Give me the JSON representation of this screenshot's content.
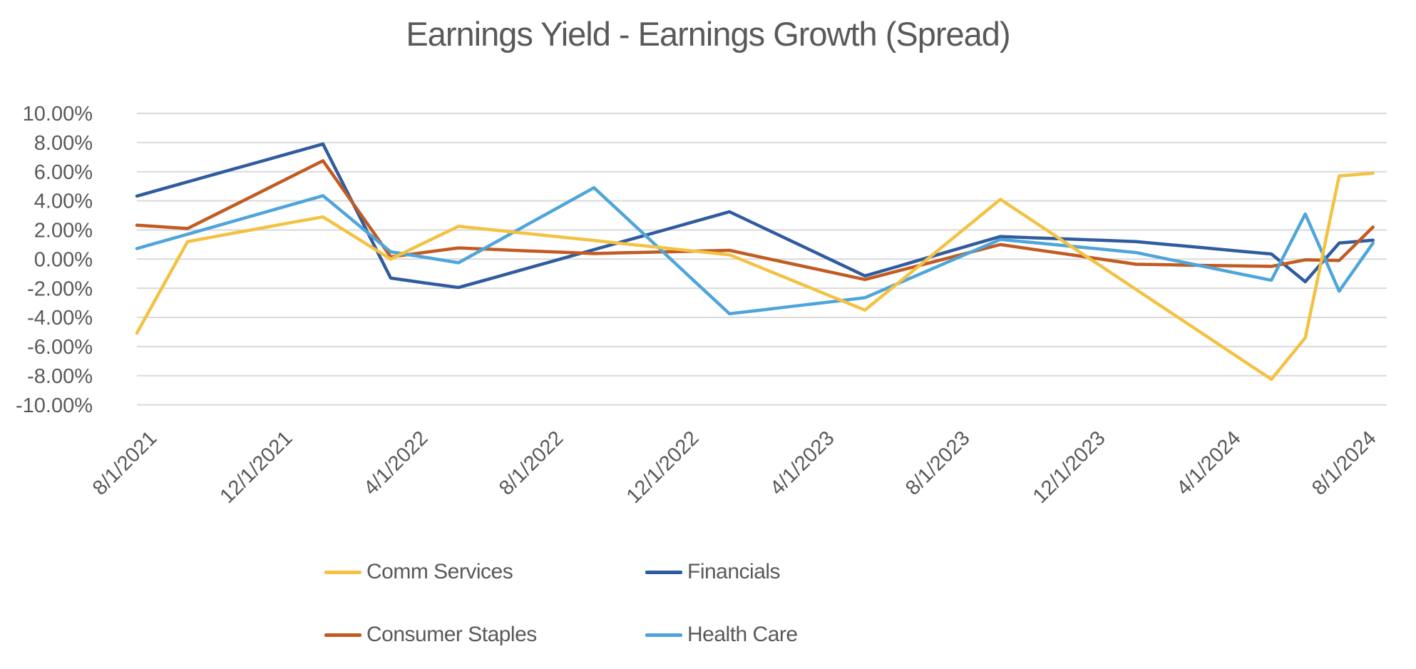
{
  "chart_data": {
    "type": "line",
    "title": "Earnings Yield - Earnings Growth (Spread)",
    "ylabel": "",
    "xlabel": "",
    "ylim": [
      -10,
      10
    ],
    "y_tick_values": [
      10,
      8,
      6,
      4,
      2,
      0,
      -2,
      -4,
      -6,
      -8,
      -10
    ],
    "y_tick_labels": [
      "10.00%",
      "8.00%",
      "6.00%",
      "4.00%",
      "2.00%",
      "0.00%",
      "-2.00%",
      "-4.00%",
      "-6.00%",
      "-8.00%",
      "-10.00%"
    ],
    "x_tick_labels": [
      "8/1/2021",
      "12/1/2021",
      "4/1/2022",
      "8/1/2022",
      "12/1/2022",
      "4/1/2023",
      "8/1/2023",
      "12/1/2023",
      "4/1/2024",
      "8/1/2024"
    ],
    "x_tick_every_n_points": 4,
    "categories": [
      "8/1/2021",
      "9/1/2021",
      "10/1/2021",
      "11/1/2021",
      "12/1/2021",
      "1/1/2022",
      "2/1/2022",
      "3/1/2022",
      "4/1/2022",
      "5/1/2022",
      "6/1/2022",
      "7/1/2022",
      "8/1/2022",
      "9/1/2022",
      "10/1/2022",
      "11/1/2022",
      "12/1/2022",
      "1/1/2023",
      "2/1/2023",
      "3/1/2023",
      "4/1/2023",
      "5/1/2023",
      "6/1/2023",
      "7/1/2023",
      "8/1/2023",
      "9/1/2023",
      "10/1/2023",
      "11/1/2023",
      "12/1/2023",
      "1/1/2024",
      "2/1/2024",
      "3/1/2024",
      "4/1/2024",
      "5/1/2024",
      "6/1/2024",
      "7/1/2024",
      "8/1/2024"
    ],
    "series": [
      {
        "name": "Comm Services",
        "color": "#F3C243",
        "values": [
          -3.0,
          1.2,
          1.63,
          2.05,
          2.48,
          2.9,
          1.45,
          0.0,
          1.13,
          2.25,
          2.01,
          1.76,
          1.52,
          1.28,
          1.03,
          0.79,
          0.54,
          0.3,
          -0.65,
          -1.6,
          -2.55,
          -3.5,
          -1.6,
          0.3,
          2.2,
          4.1,
          2.56,
          1.01,
          -0.53,
          -2.08,
          -3.62,
          -5.16,
          -6.71,
          -8.25,
          -5.4,
          5.7,
          5.9
        ]
      },
      {
        "name": "Financials",
        "color": "#2F5C9F",
        "values": [
          4.65,
          5.3,
          5.95,
          6.6,
          7.25,
          7.9,
          3.3,
          -1.3,
          -1.63,
          -1.95,
          -1.3,
          -0.65,
          0.0,
          0.65,
          1.3,
          1.95,
          2.6,
          3.25,
          2.15,
          1.05,
          -0.05,
          -1.15,
          -0.48,
          0.2,
          0.88,
          1.55,
          1.46,
          1.38,
          1.29,
          1.2,
          0.99,
          0.78,
          0.56,
          0.35,
          -1.55,
          1.1,
          1.3
        ]
      },
      {
        "name": "Consumer Staples",
        "color": "#C15B22",
        "values": [
          2.25,
          2.1,
          3.26,
          4.42,
          5.59,
          6.75,
          3.45,
          0.15,
          0.46,
          0.77,
          0.67,
          0.57,
          0.48,
          0.38,
          0.44,
          0.49,
          0.55,
          0.6,
          0.1,
          -0.4,
          -0.9,
          -1.4,
          -0.8,
          -0.2,
          0.4,
          1.0,
          0.66,
          0.33,
          -0.01,
          -0.35,
          -0.39,
          -0.43,
          -0.46,
          -0.5,
          -0.05,
          -0.1,
          2.2
        ]
      },
      {
        "name": "Health Care",
        "color": "#4FA5D9",
        "values": [
          1.05,
          1.71,
          2.37,
          3.03,
          3.69,
          4.35,
          2.43,
          0.5,
          0.13,
          -0.25,
          1.04,
          2.33,
          3.61,
          4.9,
          2.74,
          0.58,
          -1.59,
          -3.75,
          -3.48,
          -3.2,
          -2.93,
          -2.65,
          -1.65,
          -0.65,
          0.35,
          1.35,
          1.13,
          0.9,
          0.68,
          0.45,
          -0.03,
          -0.5,
          -0.98,
          -1.45,
          3.1,
          -2.2,
          1.1
        ]
      }
    ],
    "draw_order": [
      "Financials",
      "Consumer Staples",
      "Health Care",
      "Comm Services"
    ],
    "legend_position": "bottom",
    "grid": "horizontal",
    "gridline_color": "#D9D9D9",
    "text_color": "#595959",
    "background_color": "#FFFFFF"
  }
}
